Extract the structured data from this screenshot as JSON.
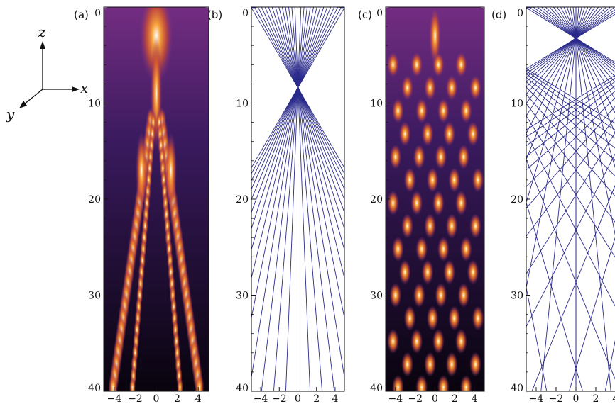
{
  "chart_data": [
    {
      "panel": "(a)",
      "type": "heatmap",
      "x_ticks": [
        "−4",
        "−2",
        "0",
        "2",
        "4"
      ],
      "y_ticks": [
        "0",
        "10",
        "20",
        "30",
        "40"
      ],
      "xlim": [
        -5,
        5
      ],
      "ylim": [
        0,
        40
      ],
      "colormap": [
        "#000000",
        "#3a1a5e",
        "#7a2f86",
        "#d2512e",
        "#f7a33a",
        "#ffffff"
      ],
      "focus_z": 8
    },
    {
      "panel": "(b)",
      "type": "line",
      "x_ticks": [
        "−4",
        "−2",
        "0",
        "2",
        "4"
      ],
      "y_ticks": [
        "0",
        "10",
        "20",
        "30",
        "40"
      ],
      "xlim": [
        -5,
        5
      ],
      "ylim": [
        0,
        40
      ],
      "ray_color": "#2b2b8c",
      "focus_z": 8
    },
    {
      "panel": "(c)",
      "type": "heatmap",
      "x_ticks": [
        "−4",
        "−2",
        "0",
        "2",
        "4"
      ],
      "y_ticks": [
        "0",
        "10",
        "20",
        "30",
        "40"
      ],
      "xlim": [
        -5,
        5
      ],
      "ylim": [
        0,
        40
      ],
      "colormap": [
        "#000000",
        "#3a1a5e",
        "#7a2f86",
        "#d2512e",
        "#f7a33a",
        "#ffffff"
      ],
      "focus_z": 3
    },
    {
      "panel": "(d)",
      "type": "line",
      "x_ticks": [
        "−4",
        "−2",
        "0",
        "2",
        "4"
      ],
      "y_ticks": [
        "0",
        "10",
        "20",
        "30",
        "40"
      ],
      "xlim": [
        -5,
        5
      ],
      "ylim": [
        0,
        40
      ],
      "ray_color": "#2b2b8c",
      "focus_z": 3
    }
  ],
  "axes_icon": {
    "z": "z",
    "x": "x",
    "y": "y"
  }
}
